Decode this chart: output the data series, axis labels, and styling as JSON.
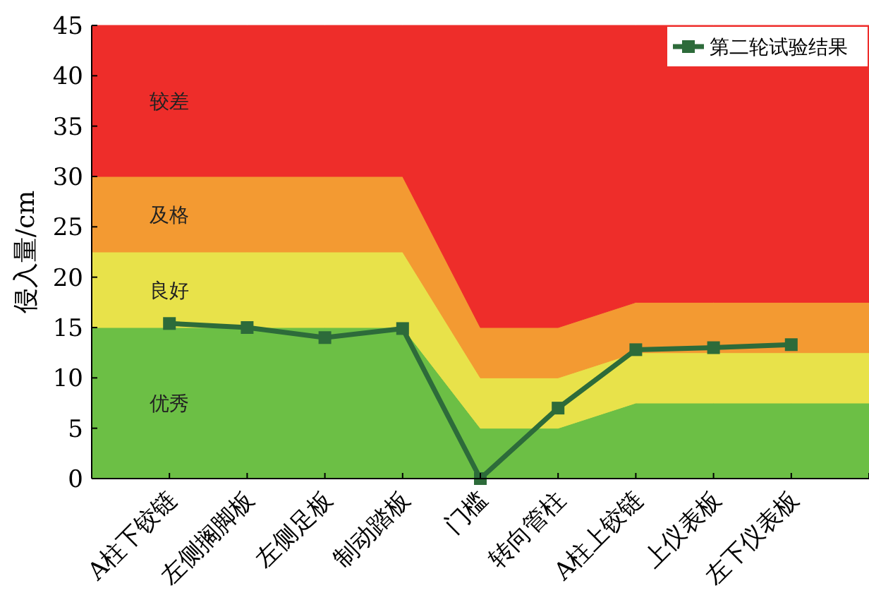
{
  "chart_data": {
    "type": "area",
    "stacked": true,
    "ylabel": "侵入量/cm",
    "legend": "top right",
    "categories": [
      null,
      "A柱下铰链",
      "左侧搁脚板",
      "左侧足板",
      "制动踏板",
      "门槛",
      "转向管柱",
      "A柱上铰链",
      "上仪表板",
      "左下仪表板",
      null
    ],
    "ylim": [
      0,
      45
    ],
    "yticks": [
      0,
      5,
      10,
      15,
      20,
      25,
      30,
      35,
      40,
      45
    ],
    "series": [
      {
        "name": "优秀",
        "color": "#6cbf45",
        "values": [
          15,
          15,
          15,
          15,
          15,
          5,
          5,
          7.5,
          7.5,
          7.5,
          7.5
        ]
      },
      {
        "name": "良好",
        "color": "#e8e24a",
        "values": [
          7.5,
          7.5,
          7.5,
          7.5,
          7.5,
          5,
          5,
          5,
          5,
          5,
          5
        ]
      },
      {
        "name": "及格",
        "color": "#f39a32",
        "values": [
          7.5,
          7.5,
          7.5,
          7.5,
          7.5,
          5,
          5,
          5,
          5,
          5,
          5
        ]
      },
      {
        "name": "较差",
        "color": "#ee2d2a",
        "values": [
          15,
          15,
          15,
          15,
          15,
          30,
          30,
          27.5,
          27.5,
          27.5,
          27.5
        ]
      },
      {
        "name": "第二轮试验结果",
        "type": "line",
        "color": "#2d6b3a",
        "marker": "square",
        "values": [
          null,
          15.4,
          15.0,
          14.0,
          14.9,
          0,
          7.0,
          12.8,
          13.0,
          13.3,
          null
        ]
      }
    ]
  }
}
